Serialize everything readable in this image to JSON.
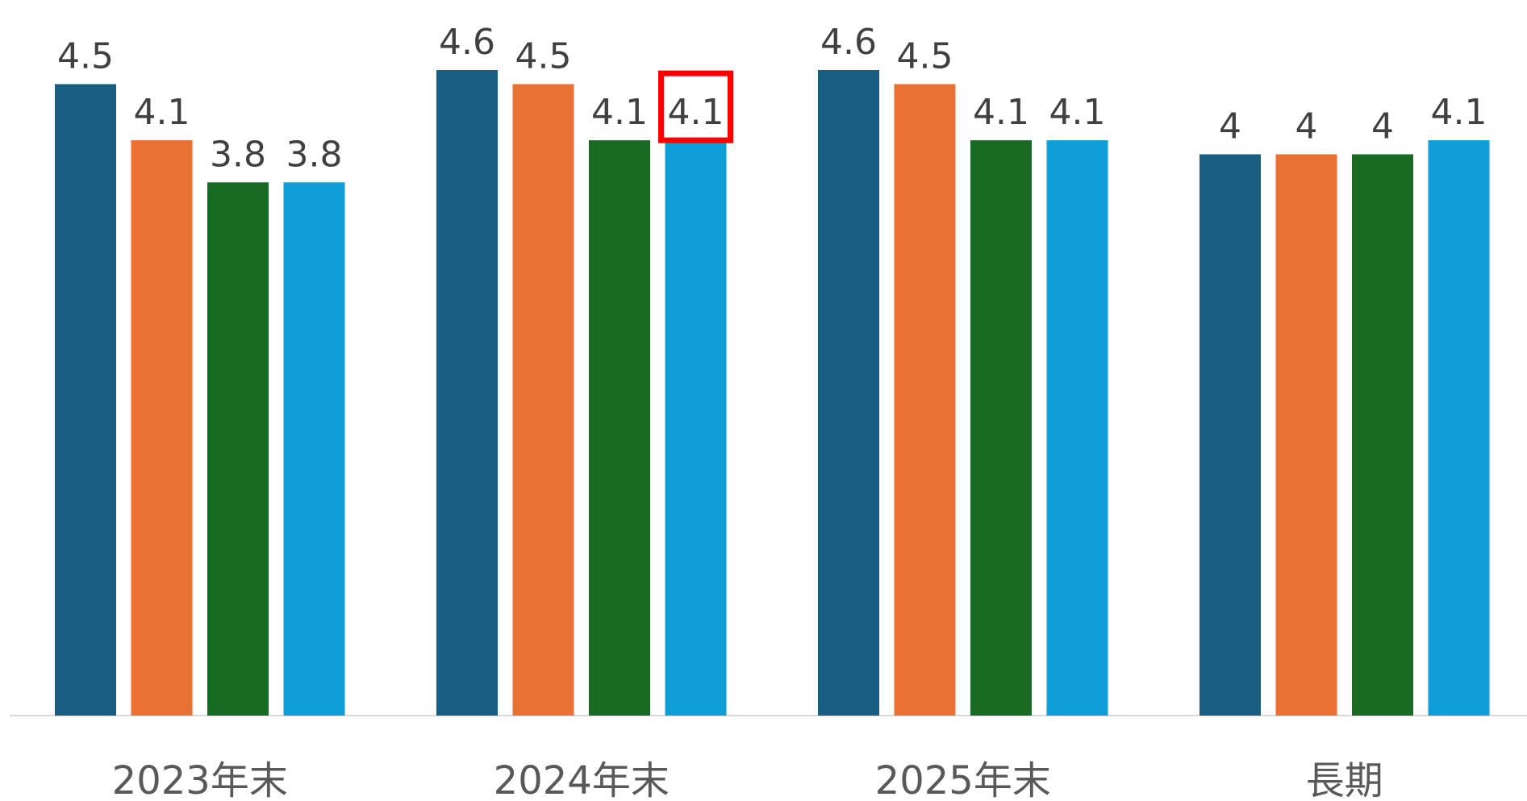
{
  "chart_data": {
    "type": "bar",
    "categories": [
      "2023年末",
      "2024年末",
      "2025年末",
      "長期"
    ],
    "series": [
      {
        "values": [
          4.5,
          4.6,
          4.6,
          4.0
        ],
        "color": "#175E82"
      },
      {
        "values": [
          4.1,
          4.5,
          4.5,
          4.0
        ],
        "color": "#E97133"
      },
      {
        "values": [
          3.8,
          4.1,
          4.1,
          4.0
        ],
        "color": "#196B24"
      },
      {
        "values": [
          3.8,
          4.1,
          4.1,
          4.1
        ],
        "color": "#0F9ED5"
      }
    ],
    "data_labels": [
      [
        "4.5",
        "4.1",
        "3.8",
        "3.8"
      ],
      [
        "4.6",
        "4.5",
        "4.1",
        "4.1"
      ],
      [
        "4.6",
        "4.5",
        "4.1",
        "4.1"
      ],
      [
        "4",
        "4",
        "4",
        "4.1"
      ]
    ],
    "ylim": [
      0,
      4.6
    ],
    "grid": false,
    "legend": "none",
    "highlight": {
      "category_index": 1,
      "series_index": 3,
      "color": "#FF0000"
    },
    "axis_color": "#D9D9D9"
  }
}
